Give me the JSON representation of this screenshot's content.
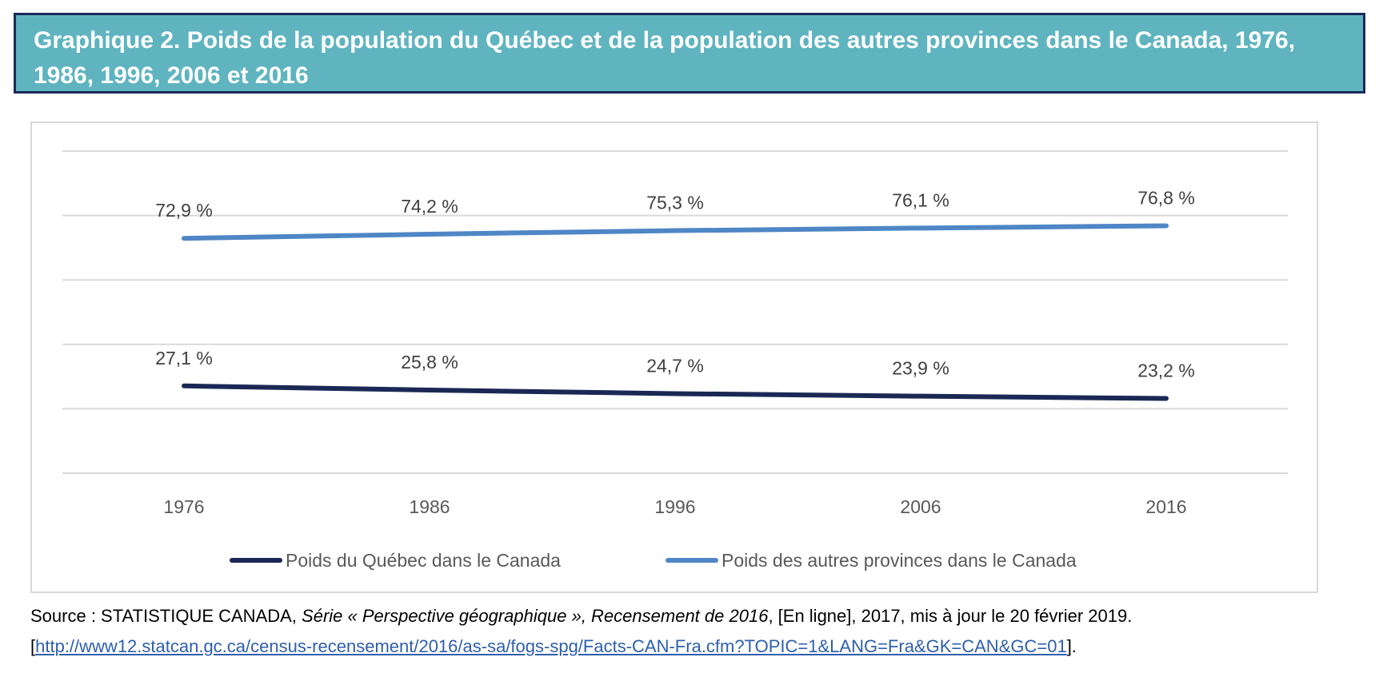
{
  "header": {
    "title": "Graphique 2. Poids de la population du Québec et de la population des autres provinces dans le Canada, 1976, 1986, 1996, 2006 et 2016"
  },
  "chart_data": {
    "type": "line",
    "title": "Graphique 2. Poids de la population du Québec et de la population des autres provinces dans le Canada, 1976, 1986, 1996, 2006 et 2016",
    "categories": [
      "1976",
      "1986",
      "1996",
      "2006",
      "2016"
    ],
    "series": [
      {
        "name": "Poids du Québec dans le Canada",
        "values": [
          27.1,
          25.8,
          24.7,
          23.9,
          23.2
        ],
        "labels": [
          "27,1 %",
          "25,8 %",
          "24,7 %",
          "23,9 %",
          "23,2 %"
        ],
        "color": "#1b2856"
      },
      {
        "name": "Poids des autres provinces dans le Canada",
        "values": [
          72.9,
          74.2,
          75.3,
          76.1,
          76.8
        ],
        "labels": [
          "72,9 %",
          "74,2 %",
          "75,3 %",
          "76,1 %",
          "76,8 %"
        ],
        "color": "#4f86c6"
      }
    ],
    "ylim": [
      0,
      100
    ],
    "y_ticks": [
      0,
      20,
      40,
      60,
      80,
      100
    ],
    "grid": true,
    "show_y_tick_labels": false,
    "legend_position": "bottom",
    "grid_color": "#d9d9d9"
  },
  "source": {
    "prefix": "Source : STATISTIQUE CANADA, ",
    "title_italic": "Série « Perspective géographique », Recensement de 2016",
    "suffix": ", [En ligne], 2017, mis à jour le 20 février 2019.",
    "bracket_open": "[",
    "url": "http://www12.statcan.gc.ca/census-recensement/2016/as-sa/fogs-spg/Facts-CAN-Fra.cfm?TOPIC=1&LANG=Fra&GK=CAN&GC=01",
    "bracket_close": "]."
  }
}
